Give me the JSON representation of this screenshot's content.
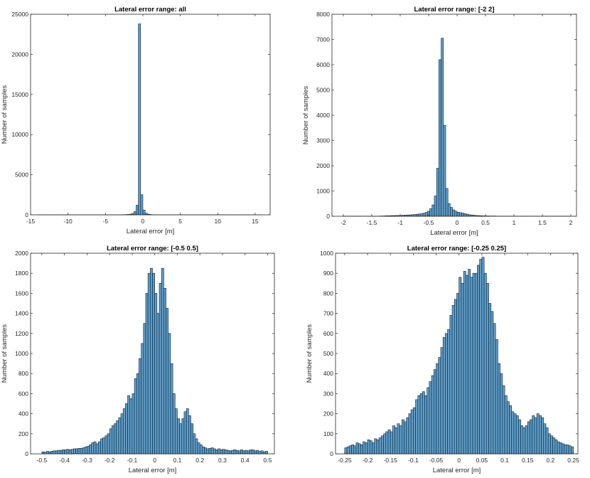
{
  "chart_data": [
    {
      "type": "bar",
      "title": "Lateral error range: all",
      "xlabel": "Lateral error [m]",
      "ylabel": "Number of samples",
      "xlim": [
        -15,
        17
      ],
      "ylim": [
        0,
        25000
      ],
      "xticks": [
        -15,
        -10,
        -5,
        0,
        5,
        10,
        15
      ],
      "xtick_labels": [
        "-15",
        "-10",
        "-5",
        "0",
        "5",
        "10",
        "15"
      ],
      "yticks": [
        0,
        5000,
        10000,
        15000,
        20000,
        25000
      ],
      "ytick_labels": [
        "0",
        "5000",
        "10000",
        "15000",
        "20000",
        "25000"
      ],
      "bin_start": -14.1,
      "bin_width": 0.3,
      "values": [
        5,
        5,
        5,
        5,
        5,
        5,
        5,
        5,
        5,
        5,
        5,
        5,
        5,
        5,
        5,
        5,
        5,
        5,
        5,
        5,
        5,
        5,
        5,
        5,
        5,
        5,
        5,
        5,
        5,
        5,
        5,
        5,
        5,
        5,
        5,
        10,
        10,
        10,
        20,
        30,
        50,
        80,
        150,
        400,
        1200,
        23800,
        2500,
        600,
        200,
        80,
        40,
        20,
        10,
        10,
        5,
        5,
        5,
        5,
        5,
        5,
        5,
        5,
        5,
        5,
        5,
        5,
        5,
        5,
        5,
        5,
        5,
        5,
        5,
        5,
        5,
        5,
        5,
        5,
        5,
        5,
        5,
        5,
        5,
        5,
        5,
        5,
        5,
        5,
        5,
        5,
        5,
        5,
        5,
        5,
        5,
        5,
        5,
        5,
        5,
        5
      ],
      "grid": false
    },
    {
      "type": "bar",
      "title": "Lateral error range: [-2 2]",
      "xlabel": "Lateral error [m]",
      "ylabel": "Number of samples",
      "xlim": [
        -2.2,
        2.1
      ],
      "ylim": [
        0,
        8000
      ],
      "xticks": [
        -2,
        -1.5,
        -1,
        -0.5,
        0,
        0.5,
        1,
        1.5,
        2
      ],
      "xtick_labels": [
        "-2",
        "-1.5",
        "-1",
        "-0.5",
        "0",
        "0.5",
        "1",
        "1.5",
        "2"
      ],
      "yticks": [
        0,
        1000,
        2000,
        3000,
        4000,
        5000,
        6000,
        7000,
        8000
      ],
      "ytick_labels": [
        "0",
        "1000",
        "2000",
        "3000",
        "4000",
        "5000",
        "6000",
        "7000",
        "8000"
      ],
      "bin_start": -2,
      "bin_width": 0.04,
      "values": [
        5,
        5,
        5,
        5,
        5,
        5,
        5,
        5,
        5,
        5,
        5,
        5,
        5,
        5,
        5,
        5,
        10,
        10,
        15,
        20,
        20,
        25,
        25,
        30,
        30,
        35,
        40,
        45,
        50,
        55,
        60,
        70,
        80,
        90,
        100,
        120,
        150,
        200,
        300,
        450,
        800,
        1900,
        6200,
        7050,
        3600,
        1100,
        500,
        350,
        250,
        200,
        160,
        140,
        120,
        100,
        80,
        60,
        50,
        40,
        30,
        25,
        20,
        15,
        15,
        10,
        10,
        10,
        10,
        5,
        5,
        5,
        5,
        5,
        5,
        5,
        5,
        5,
        5,
        5,
        5,
        5,
        5,
        5,
        5,
        5,
        5,
        5,
        5,
        5,
        5,
        5,
        5,
        5,
        5,
        5,
        5,
        5,
        5,
        5,
        5,
        5
      ],
      "grid": false
    },
    {
      "type": "bar",
      "title": "Lateral error range: [-0.5 0.5]",
      "xlabel": "Lateral error [m]",
      "ylabel": "Number of samples",
      "xlim": [
        -0.55,
        0.53
      ],
      "ylim": [
        0,
        2000
      ],
      "xticks": [
        -0.5,
        -0.4,
        -0.3,
        -0.2,
        -0.1,
        0,
        0.1,
        0.2,
        0.3,
        0.4,
        0.5
      ],
      "xtick_labels": [
        "-0.5",
        "-0.4",
        "-0.3",
        "-0.2",
        "-0.1",
        "0",
        "0.1",
        "0.2",
        "0.3",
        "0.4",
        "0.5"
      ],
      "yticks": [
        0,
        200,
        400,
        600,
        800,
        1000,
        1200,
        1400,
        1600,
        1800,
        2000
      ],
      "ytick_labels": [
        "0",
        "200",
        "400",
        "600",
        "800",
        "1000",
        "1200",
        "1400",
        "1600",
        "1800",
        "2000"
      ],
      "bin_start": -0.5,
      "bin_width": 0.01,
      "values": [
        20,
        15,
        25,
        20,
        25,
        30,
        30,
        35,
        35,
        40,
        40,
        45,
        40,
        45,
        50,
        50,
        55,
        55,
        60,
        70,
        75,
        90,
        110,
        120,
        100,
        120,
        150,
        160,
        180,
        200,
        250,
        280,
        300,
        330,
        360,
        400,
        450,
        500,
        580,
        550,
        600,
        750,
        800,
        950,
        1100,
        1300,
        1600,
        1800,
        1850,
        1800,
        1600,
        1400,
        1700,
        1850,
        1650,
        1450,
        1200,
        900,
        600,
        450,
        350,
        300,
        350,
        420,
        450,
        380,
        300,
        200,
        150,
        110,
        90,
        70,
        60,
        50,
        55,
        60,
        50,
        40,
        50,
        40,
        45,
        40,
        35,
        30,
        35,
        40,
        35,
        30,
        40,
        30,
        35,
        30,
        40,
        40,
        30,
        35,
        25,
        30,
        20,
        25
      ],
      "grid": false
    },
    {
      "type": "bar",
      "title": "Lateral error range: [-0.25 0.25]",
      "xlabel": "Lateral error [m]",
      "ylabel": "Number of samples",
      "xlim": [
        -0.27,
        0.26
      ],
      "ylim": [
        0,
        1000
      ],
      "xticks": [
        -0.25,
        -0.2,
        -0.15,
        -0.1,
        -0.05,
        0,
        0.05,
        0.1,
        0.15,
        0.2,
        0.25
      ],
      "xtick_labels": [
        "-0.25",
        "-0.2",
        "-0.15",
        "-0.1",
        "-0.05",
        "0",
        "0.05",
        "0.1",
        "0.15",
        "0.2",
        "0.25"
      ],
      "yticks": [
        0,
        100,
        200,
        300,
        400,
        500,
        600,
        700,
        800,
        900,
        1000
      ],
      "ytick_labels": [
        "0",
        "100",
        "200",
        "300",
        "400",
        "500",
        "600",
        "700",
        "800",
        "900",
        "1000"
      ],
      "bin_start": -0.25,
      "bin_width": 0.005,
      "values": [
        30,
        35,
        40,
        45,
        40,
        55,
        50,
        45,
        60,
        55,
        70,
        65,
        55,
        75,
        70,
        80,
        90,
        100,
        110,
        120,
        110,
        140,
        130,
        150,
        140,
        170,
        160,
        180,
        200,
        220,
        230,
        270,
        290,
        300,
        310,
        290,
        330,
        360,
        390,
        420,
        450,
        480,
        530,
        580,
        600,
        620,
        690,
        740,
        770,
        800,
        880,
        850,
        910,
        890,
        920,
        880,
        900,
        900,
        940,
        970,
        980,
        900,
        850,
        750,
        710,
        650,
        570,
        450,
        400,
        340,
        290,
        260,
        240,
        210,
        200,
        190,
        170,
        140,
        130,
        140,
        160,
        170,
        190,
        180,
        200,
        190,
        180,
        150,
        130,
        100,
        90,
        80,
        70,
        60,
        55,
        50,
        45,
        45,
        40,
        35
      ],
      "grid": false
    }
  ]
}
